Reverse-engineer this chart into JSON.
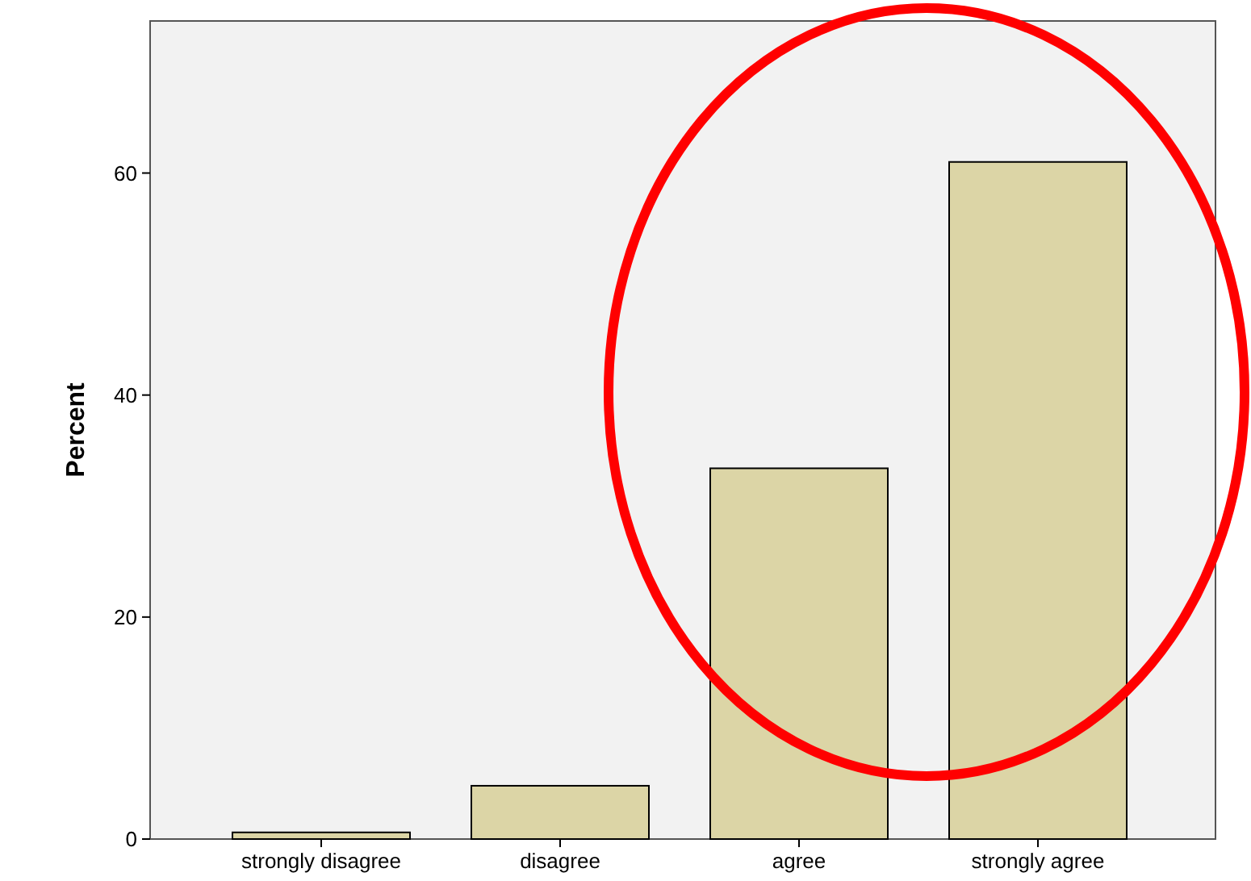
{
  "chart_data": {
    "type": "bar",
    "ylabel": "Percent",
    "categories": [
      "strongly disagree",
      "disagree",
      "agree",
      "strongly agree"
    ],
    "values": [
      0.6,
      4.8,
      33.4,
      61.0
    ],
    "color": "#dcd5a6",
    "ylim": [
      0,
      73.7
    ],
    "yticks": [
      0,
      20,
      40,
      60
    ]
  }
}
